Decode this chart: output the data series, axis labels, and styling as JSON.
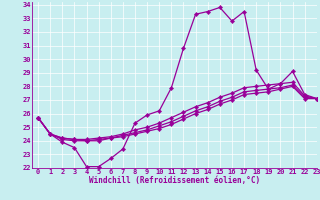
{
  "xlabel": "Windchill (Refroidissement éolien,°C)",
  "bg_color": "#c8eef0",
  "line_color": "#990099",
  "marker": "D",
  "markersize": 2.2,
  "linewidth": 0.9,
  "xlim": [
    -0.5,
    23
  ],
  "ylim": [
    22,
    34.2
  ],
  "yticks": [
    22,
    23,
    24,
    25,
    26,
    27,
    28,
    29,
    30,
    31,
    32,
    33,
    34
  ],
  "xticks": [
    0,
    1,
    2,
    3,
    4,
    5,
    6,
    7,
    8,
    9,
    10,
    11,
    12,
    13,
    14,
    15,
    16,
    17,
    18,
    19,
    20,
    21,
    22,
    23
  ],
  "series": [
    [
      25.7,
      24.5,
      23.9,
      23.5,
      22.1,
      22.1,
      22.7,
      23.4,
      25.3,
      25.9,
      26.2,
      27.9,
      30.8,
      33.3,
      33.5,
      33.8,
      32.8,
      33.5,
      29.2,
      27.8,
      28.2,
      29.1,
      27.4,
      27.1
    ],
    [
      25.7,
      24.5,
      24.1,
      24.0,
      24.0,
      24.0,
      24.2,
      24.3,
      24.5,
      24.7,
      24.9,
      25.2,
      25.6,
      26.0,
      26.3,
      26.7,
      27.0,
      27.4,
      27.5,
      27.6,
      27.8,
      28.0,
      27.1,
      27.1
    ],
    [
      25.7,
      24.5,
      24.2,
      24.1,
      24.0,
      24.1,
      24.2,
      24.4,
      24.6,
      24.8,
      25.1,
      25.4,
      25.8,
      26.2,
      26.5,
      26.9,
      27.2,
      27.6,
      27.7,
      27.8,
      27.9,
      28.1,
      27.2,
      27.1
    ],
    [
      25.7,
      24.5,
      24.2,
      24.1,
      24.1,
      24.2,
      24.3,
      24.5,
      24.8,
      25.0,
      25.3,
      25.7,
      26.1,
      26.5,
      26.8,
      27.2,
      27.5,
      27.9,
      28.0,
      28.1,
      28.2,
      28.3,
      27.3,
      27.1
    ]
  ],
  "tick_fontsize": 5.0,
  "xlabel_fontsize": 5.5,
  "grid_color": "#ffffff",
  "grid_linewidth": 0.5
}
